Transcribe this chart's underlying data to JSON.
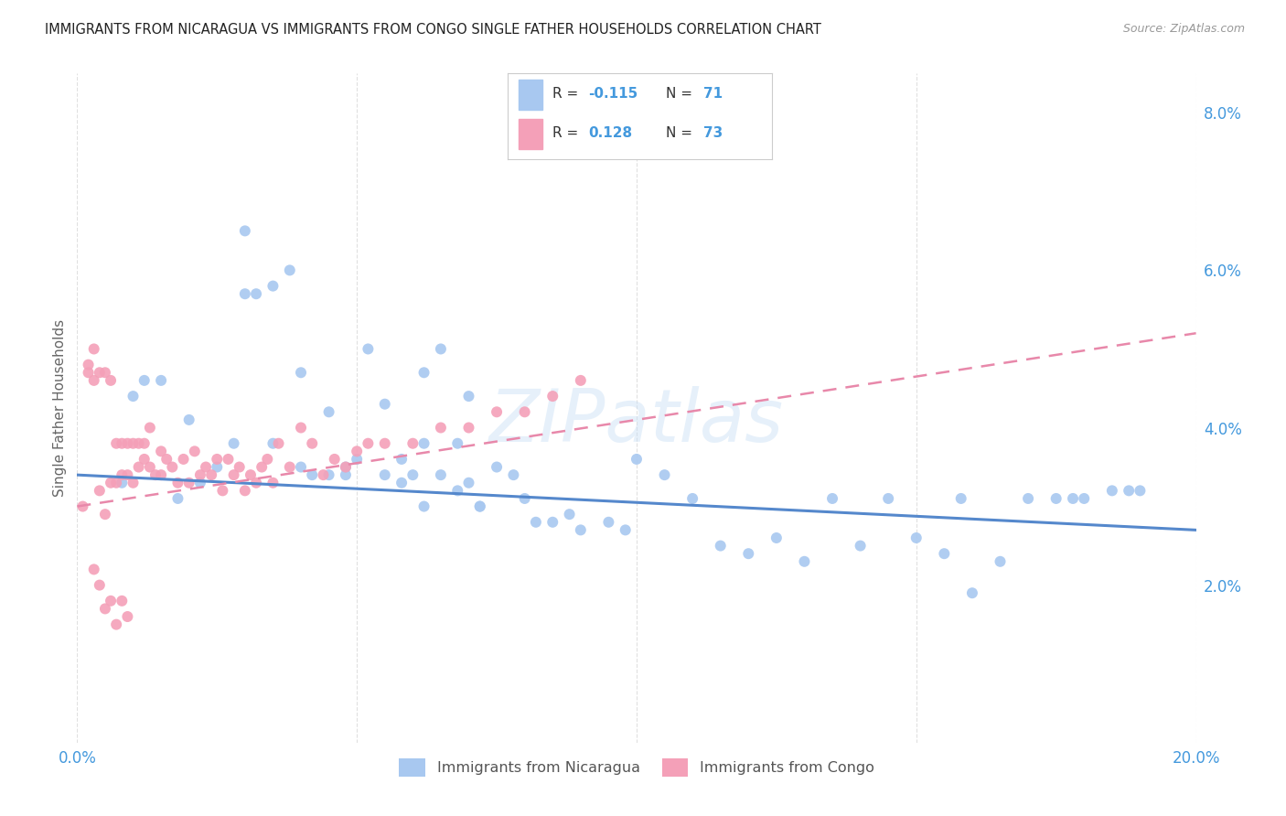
{
  "title": "IMMIGRANTS FROM NICARAGUA VS IMMIGRANTS FROM CONGO SINGLE FATHER HOUSEHOLDS CORRELATION CHART",
  "source": "Source: ZipAtlas.com",
  "ylabel": "Single Father Households",
  "watermark": "ZIPatlas",
  "xlim": [
    0.0,
    0.2
  ],
  "ylim": [
    0.0,
    0.085
  ],
  "yticks_right": [
    0.02,
    0.04,
    0.06,
    0.08
  ],
  "ytick_labels_right": [
    "2.0%",
    "4.0%",
    "6.0%",
    "8.0%"
  ],
  "legend_labels": [
    "Immigrants from Nicaragua",
    "Immigrants from Congo"
  ],
  "color_nicaragua": "#a8c8f0",
  "color_congo": "#f4a0b8",
  "line_color_nicaragua": "#5588cc",
  "line_color_congo": "#e888aa",
  "background_color": "#ffffff",
  "grid_color": "#dddddd",
  "title_color": "#222222",
  "axis_label_color": "#4499dd",
  "nicaragua_x": [
    0.008,
    0.01,
    0.012,
    0.015,
    0.018,
    0.02,
    0.022,
    0.025,
    0.028,
    0.03,
    0.03,
    0.032,
    0.035,
    0.035,
    0.038,
    0.04,
    0.04,
    0.042,
    0.045,
    0.045,
    0.048,
    0.05,
    0.052,
    0.055,
    0.055,
    0.058,
    0.06,
    0.062,
    0.062,
    0.065,
    0.065,
    0.068,
    0.07,
    0.07,
    0.072,
    0.075,
    0.078,
    0.08,
    0.082,
    0.085,
    0.088,
    0.09,
    0.095,
    0.098,
    0.1,
    0.105,
    0.11,
    0.115,
    0.12,
    0.125,
    0.13,
    0.135,
    0.14,
    0.145,
    0.15,
    0.155,
    0.158,
    0.16,
    0.165,
    0.17,
    0.175,
    0.178,
    0.18,
    0.185,
    0.188,
    0.19,
    0.062,
    0.068,
    0.072,
    0.058,
    0.048
  ],
  "nicaragua_y": [
    0.033,
    0.044,
    0.046,
    0.046,
    0.031,
    0.041,
    0.033,
    0.035,
    0.038,
    0.057,
    0.065,
    0.057,
    0.038,
    0.058,
    0.06,
    0.035,
    0.047,
    0.034,
    0.034,
    0.042,
    0.035,
    0.036,
    0.05,
    0.034,
    0.043,
    0.033,
    0.034,
    0.03,
    0.047,
    0.034,
    0.05,
    0.032,
    0.033,
    0.044,
    0.03,
    0.035,
    0.034,
    0.031,
    0.028,
    0.028,
    0.029,
    0.027,
    0.028,
    0.027,
    0.036,
    0.034,
    0.031,
    0.025,
    0.024,
    0.026,
    0.023,
    0.031,
    0.025,
    0.031,
    0.026,
    0.024,
    0.031,
    0.019,
    0.023,
    0.031,
    0.031,
    0.031,
    0.031,
    0.032,
    0.032,
    0.032,
    0.038,
    0.038,
    0.03,
    0.036,
    0.034
  ],
  "congo_x": [
    0.001,
    0.002,
    0.002,
    0.003,
    0.003,
    0.004,
    0.004,
    0.005,
    0.005,
    0.006,
    0.006,
    0.007,
    0.007,
    0.008,
    0.008,
    0.009,
    0.009,
    0.01,
    0.01,
    0.011,
    0.011,
    0.012,
    0.012,
    0.013,
    0.013,
    0.014,
    0.015,
    0.015,
    0.016,
    0.017,
    0.018,
    0.019,
    0.02,
    0.021,
    0.022,
    0.023,
    0.024,
    0.025,
    0.026,
    0.027,
    0.028,
    0.029,
    0.03,
    0.031,
    0.032,
    0.033,
    0.034,
    0.035,
    0.036,
    0.038,
    0.04,
    0.042,
    0.044,
    0.046,
    0.048,
    0.05,
    0.052,
    0.055,
    0.06,
    0.065,
    0.07,
    0.075,
    0.08,
    0.085,
    0.09,
    0.003,
    0.005,
    0.007,
    0.009,
    0.004,
    0.006,
    0.008
  ],
  "congo_y": [
    0.03,
    0.047,
    0.048,
    0.046,
    0.05,
    0.032,
    0.047,
    0.047,
    0.029,
    0.033,
    0.046,
    0.033,
    0.038,
    0.034,
    0.038,
    0.034,
    0.038,
    0.033,
    0.038,
    0.035,
    0.038,
    0.036,
    0.038,
    0.035,
    0.04,
    0.034,
    0.034,
    0.037,
    0.036,
    0.035,
    0.033,
    0.036,
    0.033,
    0.037,
    0.034,
    0.035,
    0.034,
    0.036,
    0.032,
    0.036,
    0.034,
    0.035,
    0.032,
    0.034,
    0.033,
    0.035,
    0.036,
    0.033,
    0.038,
    0.035,
    0.04,
    0.038,
    0.034,
    0.036,
    0.035,
    0.037,
    0.038,
    0.038,
    0.038,
    0.04,
    0.04,
    0.042,
    0.042,
    0.044,
    0.046,
    0.022,
    0.017,
    0.015,
    0.016,
    0.02,
    0.018,
    0.018
  ],
  "nic_line_x0": 0.0,
  "nic_line_x1": 0.2,
  "nic_line_y0": 0.034,
  "nic_line_y1": 0.027,
  "con_line_x0": 0.0,
  "con_line_x1": 0.2,
  "con_line_y0": 0.03,
  "con_line_y1": 0.052
}
